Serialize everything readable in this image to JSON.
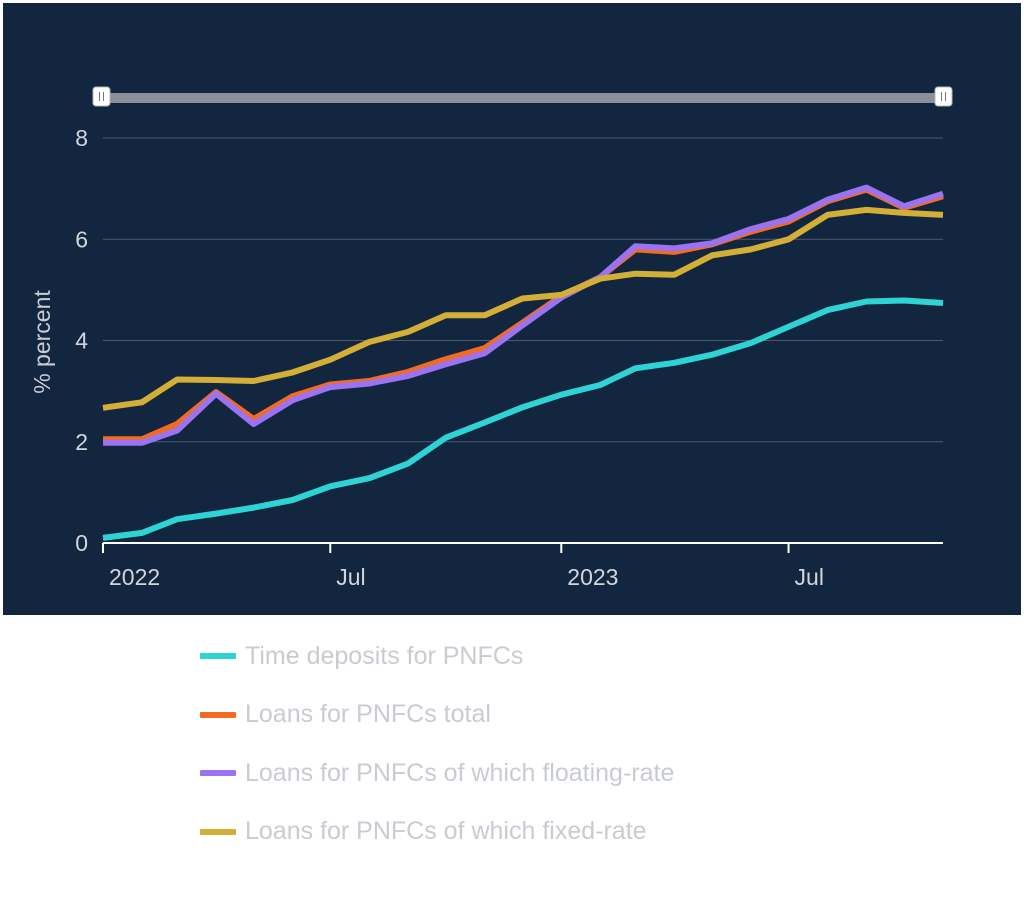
{
  "chart_data": {
    "type": "line",
    "ylabel": "% percent",
    "ylim": [
      0,
      8
    ],
    "yticks": [
      0,
      2,
      4,
      6,
      8
    ],
    "x": [
      "2022-01",
      "2022-02",
      "2022-03",
      "2022-04",
      "2022-05",
      "2022-06",
      "2022-07",
      "2022-08",
      "2022-09",
      "2022-10",
      "2022-11",
      "2022-12",
      "2023-01",
      "2023-02",
      "2023-03",
      "2023-04",
      "2023-05",
      "2023-06",
      "2023-07",
      "2023-08",
      "2023-09",
      "2023-10",
      "2023-11"
    ],
    "xrange": [
      "2022-01-01",
      "2023-11-01"
    ],
    "xticks": [
      {
        "date": "2022-01-01",
        "label": "2022"
      },
      {
        "date": "2022-07-01",
        "label": "Jul"
      },
      {
        "date": "2023-01-01",
        "label": "2023"
      },
      {
        "date": "2023-07-01",
        "label": "Jul"
      }
    ],
    "grid": true,
    "legend_position": "bottom",
    "series": [
      {
        "name": "Time deposits for PNFCs",
        "color": "#2ed3d3",
        "values": [
          0.1,
          0.2,
          0.47,
          0.58,
          0.7,
          0.85,
          1.12,
          1.28,
          1.57,
          2.08,
          2.38,
          2.68,
          2.93,
          3.12,
          3.45,
          3.56,
          3.72,
          3.95,
          4.27,
          4.6,
          4.77,
          4.79,
          4.74
        ]
      },
      {
        "name": "Loans for PNFCs total",
        "color": "#f26b21",
        "values": [
          2.05,
          2.05,
          2.35,
          2.98,
          2.45,
          2.9,
          3.13,
          3.2,
          3.38,
          3.63,
          3.85,
          4.35,
          4.88,
          5.25,
          5.8,
          5.75,
          5.9,
          6.15,
          6.35,
          6.75,
          6.98,
          6.62,
          6.85
        ]
      },
      {
        "name": "Loans for PNFCs of which floating-rate",
        "color": "#9b72f0",
        "values": [
          1.98,
          1.98,
          2.22,
          2.95,
          2.35,
          2.82,
          3.08,
          3.15,
          3.3,
          3.53,
          3.75,
          4.3,
          4.85,
          5.25,
          5.86,
          5.82,
          5.92,
          6.2,
          6.4,
          6.78,
          7.02,
          6.65,
          6.9
        ]
      },
      {
        "name": "Loans for PNFCs of which fixed-rate",
        "color": "#d4af37",
        "values": [
          2.67,
          2.78,
          3.23,
          3.22,
          3.2,
          3.37,
          3.62,
          3.97,
          4.17,
          4.5,
          4.5,
          4.83,
          4.9,
          5.22,
          5.32,
          5.3,
          5.68,
          5.8,
          6.0,
          6.48,
          6.58,
          6.52,
          6.48
        ]
      }
    ]
  }
}
